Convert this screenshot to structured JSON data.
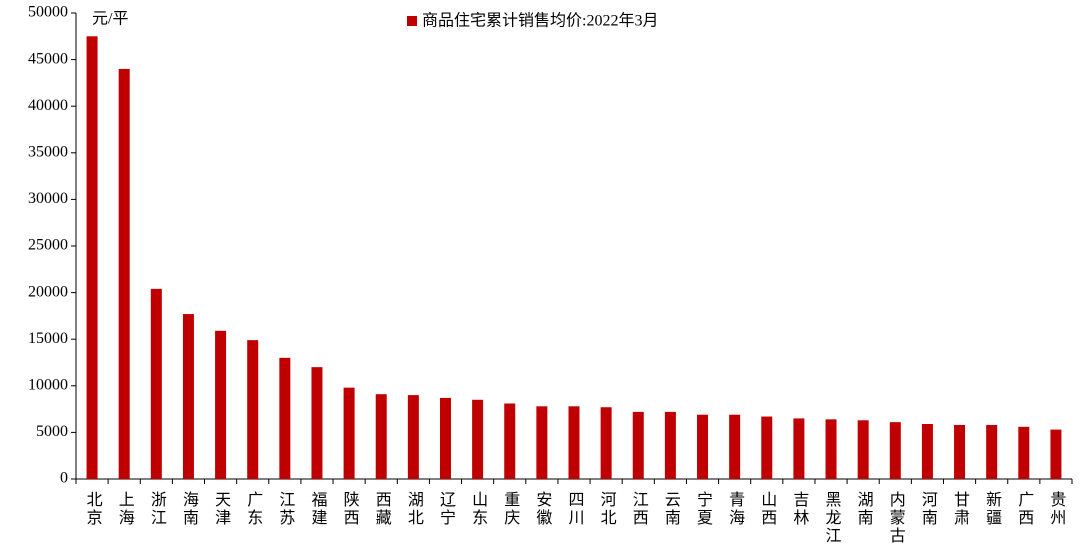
{
  "chart_data": {
    "type": "bar",
    "unit_label": "元/平",
    "categories": [
      "北京",
      "上海",
      "浙江",
      "海南",
      "天津",
      "广东",
      "江苏",
      "福建",
      "陕西",
      "西藏",
      "湖北",
      "辽宁",
      "山东",
      "重庆",
      "安徽",
      "四川",
      "河北",
      "江西",
      "云南",
      "宁夏",
      "青海",
      "山西",
      "吉林",
      "黑龙江",
      "湖南",
      "内蒙古",
      "河南",
      "甘肃",
      "新疆",
      "广西",
      "贵州"
    ],
    "series": [
      {
        "name": "商品住宅累计销售均价:2022年3月",
        "color": "#c00000",
        "values": [
          47500,
          44000,
          20400,
          17700,
          15900,
          14900,
          13000,
          12000,
          9800,
          9100,
          9000,
          8700,
          8500,
          8100,
          7800,
          7800,
          7700,
          7200,
          7200,
          6900,
          6900,
          6700,
          6500,
          6400,
          6300,
          6100,
          5900,
          5800,
          5800,
          5600,
          5300
        ]
      }
    ],
    "ylim": [
      0,
      50000
    ],
    "yticks": [
      0,
      5000,
      10000,
      15000,
      20000,
      25000,
      30000,
      35000,
      40000,
      45000,
      50000
    ],
    "legend": "top"
  }
}
